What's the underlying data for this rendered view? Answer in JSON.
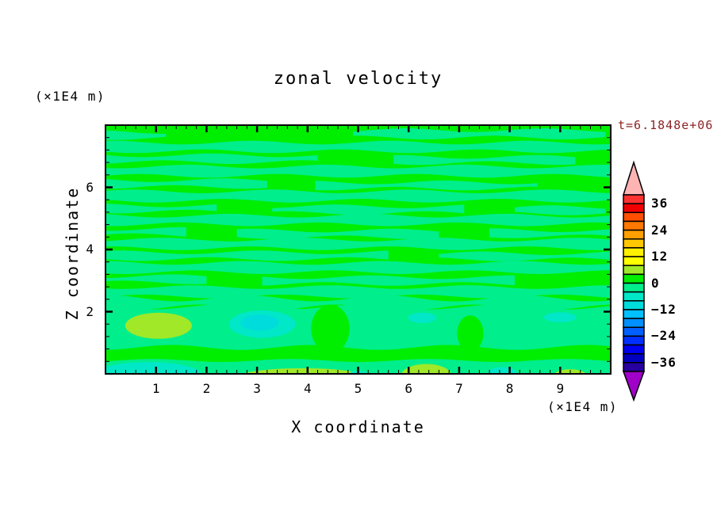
{
  "title": "zonal velocity",
  "timestamp": {
    "text": "t=6.1848e+06",
    "color": "#8B2323"
  },
  "axes": {
    "x": {
      "label": "X coordinate",
      "unit": "(×1E4 m)",
      "min": 0,
      "max": 10,
      "major_ticks": [
        1,
        2,
        3,
        4,
        5,
        6,
        7,
        8,
        9
      ],
      "minor_step": 0.2
    },
    "z": {
      "label": "Z coordinate",
      "unit": "(×1E4 m)",
      "min": 0,
      "max": 8,
      "major_ticks": [
        2,
        4,
        6
      ],
      "minor_step": 0.4
    }
  },
  "colorbar": {
    "labels": [
      36,
      24,
      12,
      0,
      -12,
      -24,
      -36
    ],
    "level_min": -40,
    "level_max": 40,
    "contour_interval": 4,
    "band_colors_top_to_bottom": [
      "#FF3232",
      "#F00000",
      "#FF5000",
      "#FF7800",
      "#FFA000",
      "#FFC800",
      "#FFF000",
      "#FFFF00",
      "#A0E828",
      "#00EE00",
      "#00EE8C",
      "#00E8C8",
      "#00DCDC",
      "#00C0FF",
      "#0090FF",
      "#0060FF",
      "#0030FF",
      "#0000F0",
      "#0000C0",
      "#2800A0"
    ],
    "over_color": "#FFB4B4",
    "under_color": "#A000C8",
    "outline_color": "#000000"
  },
  "chart_data": {
    "type": "contour",
    "title": "zonal velocity",
    "xlabel": "X coordinate",
    "ylabel": "Z coordinate",
    "x_range": [
      0,
      10
    ],
    "z_range": [
      0,
      8
    ],
    "units": "×1E4 m",
    "field_units_labels": [
      36,
      24,
      12,
      0,
      -12,
      -24,
      -36
    ],
    "background_band": {
      "value_range": [
        0,
        4
      ],
      "color": "#00EE00"
    },
    "stripe_band": {
      "value_range": [
        -4,
        0
      ],
      "color": "#00EE8C"
    },
    "stripes": [
      {
        "z": 7.72,
        "h": 0.24,
        "x0": 4.9,
        "x1": 10,
        "ph": 0.5
      },
      {
        "z": 7.68,
        "h": 0.2,
        "x0": 0,
        "x1": 1.35,
        "ph": 2.1
      },
      {
        "z": 7.3,
        "h": 0.28,
        "x0": 0,
        "x1": 10,
        "ph": 1.2
      },
      {
        "z": 6.92,
        "h": 0.22,
        "x0": 0,
        "x1": 4.3,
        "ph": 3.0
      },
      {
        "z": 6.88,
        "h": 0.2,
        "x0": 5.7,
        "x1": 9.3,
        "ph": 0.8
      },
      {
        "z": 6.52,
        "h": 0.3,
        "x0": 0,
        "x1": 10,
        "ph": 4.1
      },
      {
        "z": 6.12,
        "h": 0.22,
        "x0": 0,
        "x1": 3.2,
        "ph": 2.5
      },
      {
        "z": 6.06,
        "h": 0.2,
        "x0": 4.15,
        "x1": 8.6,
        "ph": 5.0
      },
      {
        "z": 5.72,
        "h": 0.3,
        "x0": 0,
        "x1": 10,
        "ph": 0.3
      },
      {
        "z": 5.32,
        "h": 0.2,
        "x0": 0,
        "x1": 2.3,
        "ph": 1.9
      },
      {
        "z": 5.28,
        "h": 0.22,
        "x0": 3.3,
        "x1": 7.2,
        "ph": 3.6
      },
      {
        "z": 5.26,
        "h": 0.2,
        "x0": 8.1,
        "x1": 10,
        "ph": 0.2
      },
      {
        "z": 4.95,
        "h": 0.28,
        "x0": 0,
        "x1": 10,
        "ph": 2.2
      },
      {
        "z": 4.56,
        "h": 0.2,
        "x0": 0,
        "x1": 1.6,
        "ph": 4.4
      },
      {
        "z": 4.5,
        "h": 0.22,
        "x0": 2.6,
        "x1": 6.6,
        "ph": 1.1
      },
      {
        "z": 4.52,
        "h": 0.2,
        "x0": 7.6,
        "x1": 10,
        "ph": 2.8
      },
      {
        "z": 4.18,
        "h": 0.28,
        "x0": 0,
        "x1": 10,
        "ph": 5.3
      },
      {
        "z": 3.8,
        "h": 0.22,
        "x0": 0,
        "x1": 5.6,
        "ph": 0.9
      },
      {
        "z": 3.78,
        "h": 0.2,
        "x0": 6.6,
        "x1": 10,
        "ph": 3.3
      },
      {
        "z": 3.42,
        "h": 0.3,
        "x0": 0,
        "x1": 10,
        "ph": 1.6
      },
      {
        "z": 3.04,
        "h": 0.2,
        "x0": 0,
        "x1": 2.1,
        "ph": 4.8
      },
      {
        "z": 3.0,
        "h": 0.22,
        "x0": 3.1,
        "x1": 8.2,
        "ph": 2.0
      },
      {
        "z": 2.64,
        "h": 0.3,
        "x0": 0,
        "x1": 10,
        "ph": 3.9
      },
      {
        "z": 2.28,
        "h": 0.3,
        "x0": 0,
        "x1": 10,
        "ph": 1.4,
        "amp": 0.1
      },
      {
        "z": 2.02,
        "h": 0.14,
        "x0": 1.8,
        "x1": 5.2,
        "ph": 0.6
      },
      {
        "z": 1.5,
        "h": 1.3,
        "x0": 0,
        "x1": 10,
        "ph": 2.6,
        "amp": 0.08
      },
      {
        "z": 0.2,
        "h": 0.46,
        "x0": 0,
        "x1": 10,
        "ph": 5.7,
        "amp": 0.05
      }
    ],
    "features": [
      {
        "name": "green-gap",
        "x": 4.45,
        "z": 1.45,
        "rx": 0.38,
        "rz": 0.78,
        "color": "#00EE00"
      },
      {
        "name": "green-gap",
        "x": 7.22,
        "z": 1.3,
        "rx": 0.26,
        "rz": 0.58,
        "color": "#00EE00"
      },
      {
        "name": "positive-cell",
        "x": 1.05,
        "z": 1.55,
        "rx": 0.66,
        "rz": 0.42,
        "color": "#A0E828"
      },
      {
        "name": "negative-cell",
        "x": 3.1,
        "z": 1.6,
        "rx": 0.66,
        "rz": 0.44,
        "color": "#00E8C8"
      },
      {
        "name": "negative-cell-core",
        "x": 3.05,
        "z": 1.65,
        "rx": 0.38,
        "rz": 0.26,
        "color": "#00DCDC"
      },
      {
        "name": "negative-cell",
        "x": 6.27,
        "z": 1.8,
        "rx": 0.28,
        "rz": 0.17,
        "color": "#00E8C8"
      },
      {
        "name": "negative-cell",
        "x": 9.0,
        "z": 1.82,
        "rx": 0.32,
        "rz": 0.16,
        "color": "#00E8C8"
      },
      {
        "name": "bottom-negative",
        "x": 0.85,
        "z": -0.02,
        "rx": 1.05,
        "rz": 0.4,
        "color": "#00E8C8"
      },
      {
        "name": "bottom-positive",
        "x": 3.9,
        "z": -0.12,
        "rx": 1.3,
        "rz": 0.3,
        "color": "#A0E828"
      },
      {
        "name": "bottom-negative",
        "x": 5.0,
        "z": -0.04,
        "rx": 0.2,
        "rz": 0.14,
        "color": "#00E8C8"
      },
      {
        "name": "bottom-positive",
        "x": 6.35,
        "z": -0.06,
        "rx": 0.5,
        "rz": 0.38,
        "color": "#A0E828"
      },
      {
        "name": "bottom-negative",
        "x": 7.85,
        "z": 0.0,
        "rx": 0.3,
        "rz": 0.22,
        "color": "#00E8C8"
      },
      {
        "name": "bottom-positive",
        "x": 9.2,
        "z": -0.05,
        "rx": 0.32,
        "rz": 0.2,
        "color": "#A0E828"
      }
    ]
  }
}
